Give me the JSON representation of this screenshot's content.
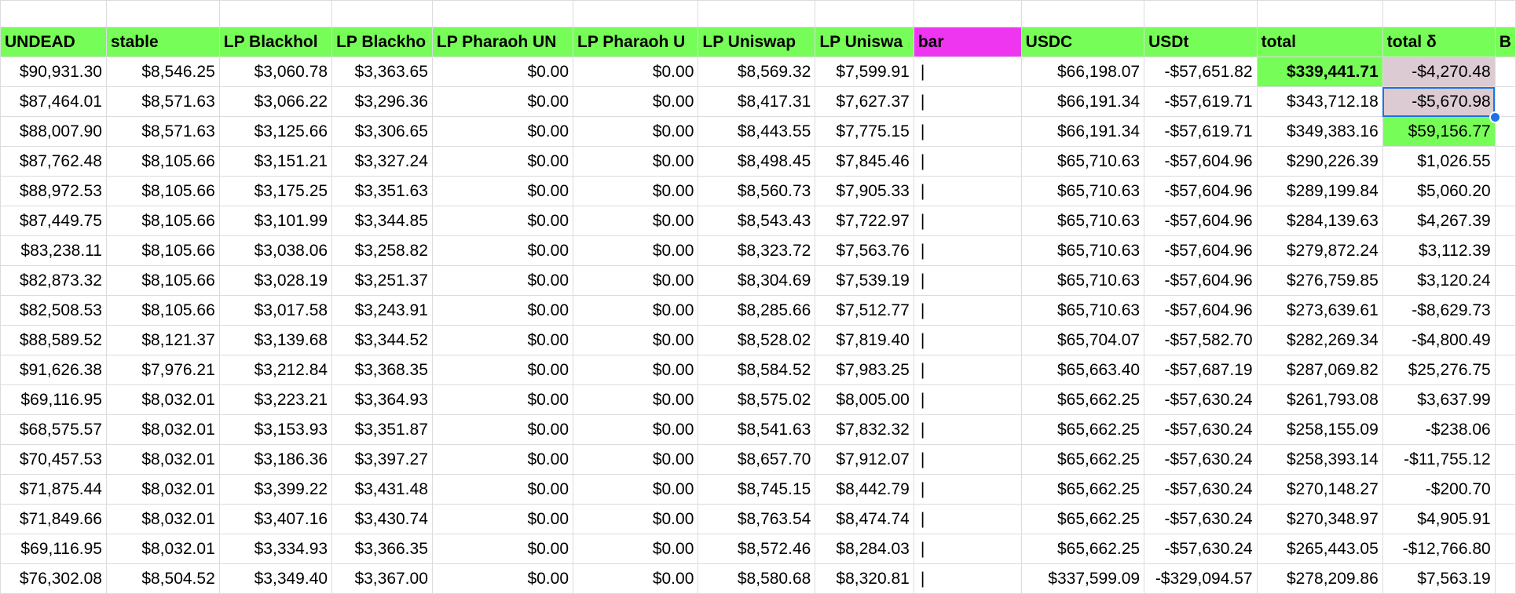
{
  "sheet": {
    "headers": [
      "UNDEAD",
      "stable",
      "LP Blackhol",
      "LP Blackho",
      "LP Pharaoh UN",
      "LP Pharaoh U",
      "LP Uniswap",
      "LP Uniswa",
      "bar",
      "USDC",
      "USDt",
      "total",
      "total δ",
      "B"
    ],
    "rows": [
      [
        "$90,931.30",
        "$8,546.25",
        "$3,060.78",
        "$3,363.65",
        "$0.00",
        "$0.00",
        "$8,569.32",
        "$7,599.91",
        "|",
        "$66,198.07",
        "-$57,651.82",
        "$339,441.71",
        "-$4,270.48"
      ],
      [
        "$87,464.01",
        "$8,571.63",
        "$3,066.22",
        "$3,296.36",
        "$0.00",
        "$0.00",
        "$8,417.31",
        "$7,627.37",
        "|",
        "$66,191.34",
        "-$57,619.71",
        "$343,712.18",
        "-$5,670.98"
      ],
      [
        "$88,007.90",
        "$8,571.63",
        "$3,125.66",
        "$3,306.65",
        "$0.00",
        "$0.00",
        "$8,443.55",
        "$7,775.15",
        "|",
        "$66,191.34",
        "-$57,619.71",
        "$349,383.16",
        "$59,156.77"
      ],
      [
        "$87,762.48",
        "$8,105.66",
        "$3,151.21",
        "$3,327.24",
        "$0.00",
        "$0.00",
        "$8,498.45",
        "$7,845.46",
        "|",
        "$65,710.63",
        "-$57,604.96",
        "$290,226.39",
        "$1,026.55"
      ],
      [
        "$88,972.53",
        "$8,105.66",
        "$3,175.25",
        "$3,351.63",
        "$0.00",
        "$0.00",
        "$8,560.73",
        "$7,905.33",
        "|",
        "$65,710.63",
        "-$57,604.96",
        "$289,199.84",
        "$5,060.20"
      ],
      [
        "$87,449.75",
        "$8,105.66",
        "$3,101.99",
        "$3,344.85",
        "$0.00",
        "$0.00",
        "$8,543.43",
        "$7,722.97",
        "|",
        "$65,710.63",
        "-$57,604.96",
        "$284,139.63",
        "$4,267.39"
      ],
      [
        "$83,238.11",
        "$8,105.66",
        "$3,038.06",
        "$3,258.82",
        "$0.00",
        "$0.00",
        "$8,323.72",
        "$7,563.76",
        "|",
        "$65,710.63",
        "-$57,604.96",
        "$279,872.24",
        "$3,112.39"
      ],
      [
        "$82,873.32",
        "$8,105.66",
        "$3,028.19",
        "$3,251.37",
        "$0.00",
        "$0.00",
        "$8,304.69",
        "$7,539.19",
        "|",
        "$65,710.63",
        "-$57,604.96",
        "$276,759.85",
        "$3,120.24"
      ],
      [
        "$82,508.53",
        "$8,105.66",
        "$3,017.58",
        "$3,243.91",
        "$0.00",
        "$0.00",
        "$8,285.66",
        "$7,512.77",
        "|",
        "$65,710.63",
        "-$57,604.96",
        "$273,639.61",
        "-$8,629.73"
      ],
      [
        "$88,589.52",
        "$8,121.37",
        "$3,139.68",
        "$3,344.52",
        "$0.00",
        "$0.00",
        "$8,528.02",
        "$7,819.40",
        "|",
        "$65,704.07",
        "-$57,582.70",
        "$282,269.34",
        "-$4,800.49"
      ],
      [
        "$91,626.38",
        "$7,976.21",
        "$3,212.84",
        "$3,368.35",
        "$0.00",
        "$0.00",
        "$8,584.52",
        "$7,983.25",
        "|",
        "$65,663.40",
        "-$57,687.19",
        "$287,069.82",
        "$25,276.75"
      ],
      [
        "$69,116.95",
        "$8,032.01",
        "$3,223.21",
        "$3,364.93",
        "$0.00",
        "$0.00",
        "$8,575.02",
        "$8,005.00",
        "|",
        "$65,662.25",
        "-$57,630.24",
        "$261,793.08",
        "$3,637.99"
      ],
      [
        "$68,575.57",
        "$8,032.01",
        "$3,153.93",
        "$3,351.87",
        "$0.00",
        "$0.00",
        "$8,541.63",
        "$7,832.32",
        "|",
        "$65,662.25",
        "-$57,630.24",
        "$258,155.09",
        "-$238.06"
      ],
      [
        "$70,457.53",
        "$8,032.01",
        "$3,186.36",
        "$3,397.27",
        "$0.00",
        "$0.00",
        "$8,657.70",
        "$7,912.07",
        "|",
        "$65,662.25",
        "-$57,630.24",
        "$258,393.14",
        "-$11,755.12"
      ],
      [
        "$71,875.44",
        "$8,032.01",
        "$3,399.22",
        "$3,431.48",
        "$0.00",
        "$0.00",
        "$8,745.15",
        "$8,442.79",
        "|",
        "$65,662.25",
        "-$57,630.24",
        "$270,148.27",
        "-$200.70"
      ],
      [
        "$71,849.66",
        "$8,032.01",
        "$3,407.16",
        "$3,430.74",
        "$0.00",
        "$0.00",
        "$8,763.54",
        "$8,474.74",
        "|",
        "$65,662.25",
        "-$57,630.24",
        "$270,348.97",
        "$4,905.91"
      ],
      [
        "$69,116.95",
        "$8,032.01",
        "$3,334.93",
        "$3,366.35",
        "$0.00",
        "$0.00",
        "$8,572.46",
        "$8,284.03",
        "|",
        "$65,662.25",
        "-$57,630.24",
        "$265,443.05",
        "-$12,766.80"
      ],
      [
        "$76,302.08",
        "$8,504.52",
        "$3,349.40",
        "$3,367.00",
        "$0.00",
        "$0.00",
        "$8,580.68",
        "$8,320.81",
        "|",
        "$337,599.09",
        "-$329,094.57",
        "$278,209.86",
        "$7,563.19"
      ]
    ],
    "colors": {
      "header_green": "#77fd57",
      "header_magenta": "#ee36f0",
      "highlight_green": "#77fd57",
      "highlight_mauve": "#dccbd3",
      "selection_blue": "#1a73e8",
      "gridline": "#dadce0"
    }
  }
}
